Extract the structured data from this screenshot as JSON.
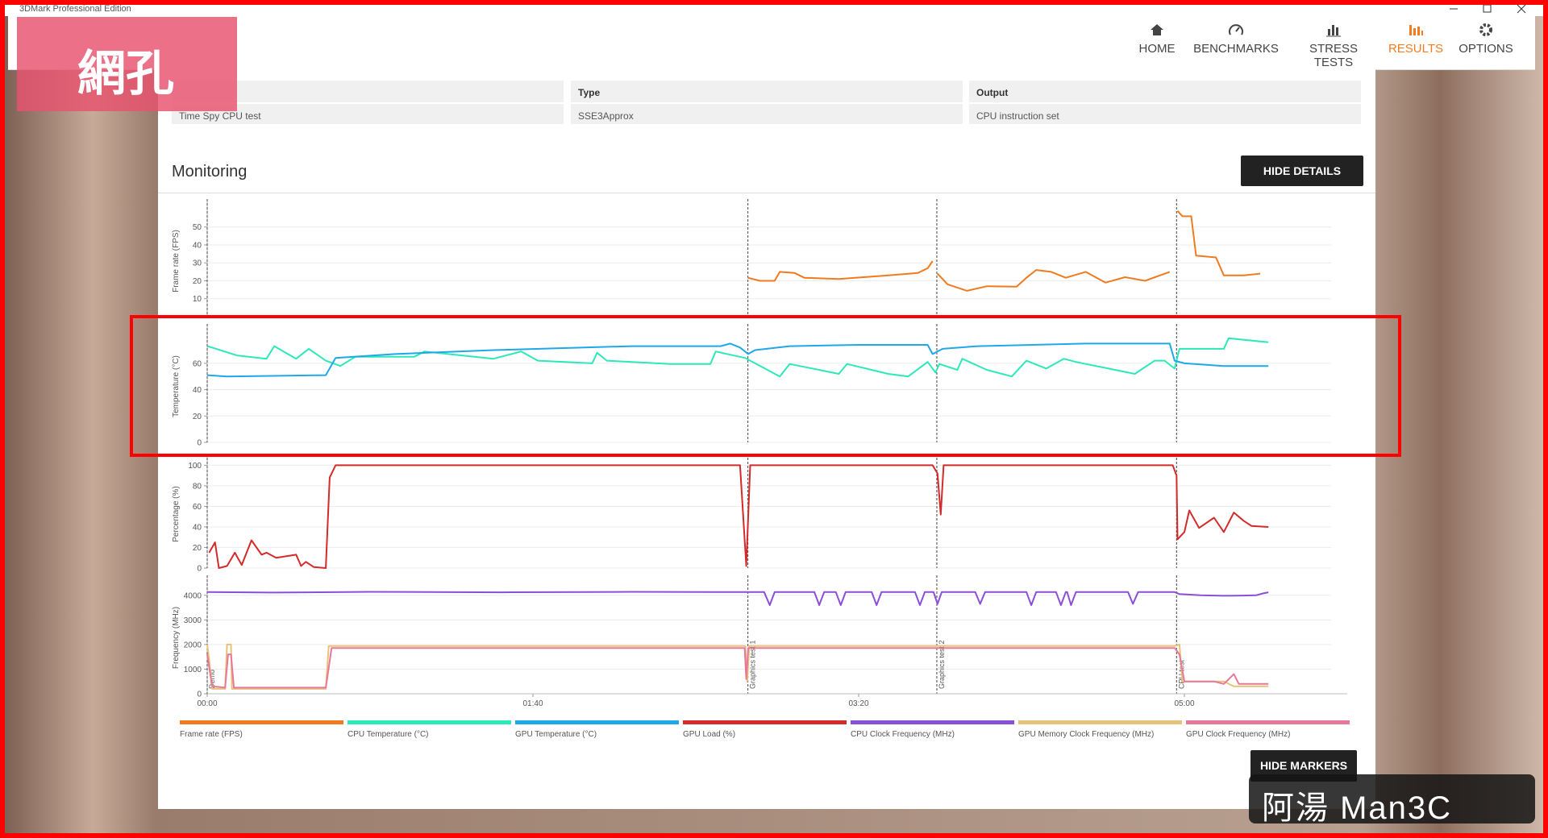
{
  "window_title": "3DMark Professional Edition",
  "overlay_label": "網孔",
  "nav": [
    "HOME",
    "BENCHMARKS",
    "STRESS TESTS",
    "RESULTS",
    "OPTIONS"
  ],
  "details": [
    {
      "value": "Time Spy CPU test"
    },
    {
      "header": "Type",
      "value": "SSE3Approx"
    },
    {
      "header": "Output",
      "value": "CPU instruction set"
    }
  ],
  "section_title": "Monitoring",
  "hide_details": "HIDE DETAILS",
  "hide_markers": "HIDE MARKERS",
  "watermark": "阿湯 Man3C",
  "timeline_markers": [
    {
      "x": 0,
      "label": "Demo"
    },
    {
      "x": 166,
      "label": "Graphics test 1"
    },
    {
      "x": 224,
      "label": "Graphics test 2"
    },
    {
      "x": 297.6,
      "label": "CPU test"
    }
  ],
  "chart_data": [
    {
      "type": "line",
      "ylabel": "Frame rate (FPS)",
      "xlim": [
        0,
        350
      ],
      "ylim": [
        0,
        62
      ],
      "yticks": [
        10,
        20,
        30,
        40,
        50
      ],
      "grid": true,
      "series": [
        {
          "name": "Frame rate (FPS)",
          "color": "#f07a20",
          "x": [
            166,
            169.7,
            174.2,
            175.8,
            180.3,
            183.3,
            193.9,
            209.1,
            218.2,
            221.2,
            222.7,
            223.5,
            224.2,
            227.3,
            233.3,
            239.4,
            248.5,
            251.5,
            254.5,
            259.1,
            263.6,
            269.7,
            275.8,
            281.8,
            287.9,
            295.5,
            296.5,
            297.9,
            299.4,
            302.1,
            303.6,
            309.7,
            312.1,
            318.2,
            323.3
          ],
          "values": [
            21.7,
            20,
            20,
            25,
            24.4,
            21.7,
            21,
            23,
            24.4,
            27,
            31,
            null,
            24,
            18,
            14.4,
            17,
            16.7,
            21.7,
            26,
            25,
            21.7,
            25,
            19,
            22,
            20,
            25,
            null,
            59,
            56,
            56,
            34,
            33,
            23,
            23,
            24
          ]
        }
      ]
    },
    {
      "type": "line",
      "ylabel": "Temperature (°C)",
      "xlim": [
        0,
        350
      ],
      "ylim": [
        0,
        85
      ],
      "yticks": [
        0,
        20,
        40,
        60
      ],
      "grid": true,
      "series": [
        {
          "name": "CPU Temperature (°C)",
          "color": "#2de8b8",
          "x": [
            0,
            1.5,
            9.1,
            18.2,
            20.6,
            27.3,
            31.2,
            36.4,
            40.9,
            45.5,
            63.6,
            66.7,
            87.9,
            96.4,
            101.5,
            118.2,
            119.7,
            122.7,
            142.4,
            154.5,
            156.1,
            165.2,
            166.7,
            175.8,
            178.8,
            193.9,
            196.4,
            209.1,
            215.2,
            221.2,
            223.6,
            224.8,
            230.3,
            231.8,
            239.4,
            247,
            251.5,
            257.6,
            263,
            266.7,
            284.8,
            290.9,
            293.9,
            297,
            298.5,
            312.1,
            313.6,
            325.8
          ],
          "values": [
            73,
            72,
            66,
            63.5,
            73,
            63.5,
            71,
            62,
            58,
            65,
            65,
            69,
            63.5,
            69,
            62,
            60,
            68,
            62,
            59.5,
            59.5,
            69,
            64,
            62,
            50,
            59.5,
            52,
            59.5,
            52,
            50,
            61,
            53,
            59.5,
            55,
            63.5,
            55,
            50,
            62,
            56,
            63.5,
            61,
            52,
            62,
            62,
            56,
            71,
            71,
            79,
            76
          ]
        },
        {
          "name": "GPU Temperature (°C)",
          "color": "#1fa8e8",
          "x": [
            0,
            6.1,
            36.4,
            39.4,
            57.6,
            87.9,
            130.3,
            157.6,
            160.6,
            163.6,
            166.1,
            168.2,
            178.8,
            200,
            221.2,
            222.7,
            225.8,
            236.4,
            269.7,
            295.5,
            297,
            300,
            312.1,
            325.8
          ],
          "values": [
            51,
            50,
            51,
            64,
            67,
            70,
            73,
            73,
            75,
            72,
            67,
            70,
            73,
            74,
            74,
            67,
            71,
            73,
            75,
            75,
            62,
            60,
            58,
            58
          ]
        }
      ]
    },
    {
      "type": "line",
      "ylabel": "Percentage (%)",
      "xlim": [
        0,
        350
      ],
      "ylim": [
        0,
        105
      ],
      "yticks": [
        0,
        20,
        40,
        60,
        80,
        100
      ],
      "grid": true,
      "series": [
        {
          "name": "GPU Load (%)",
          "color": "#d42a2a",
          "x": [
            0.6,
            2.4,
            3.6,
            6.1,
            8.5,
            10.6,
            13.6,
            16.7,
            18.2,
            21.2,
            27.3,
            28.8,
            30.3,
            32.7,
            36.4,
            37.6,
            39.4,
            163.6,
            165.5,
            166.7,
            222.7,
            224.2,
            225.2,
            226.1,
            296.4,
            297.6,
            297.9,
            300,
            301.5,
            304.5,
            309.1,
            312.1,
            315.2,
            318.2,
            320.6,
            325.8
          ],
          "values": [
            15,
            25,
            0,
            2,
            15,
            3,
            27,
            13,
            15,
            10,
            13,
            2,
            6,
            1,
            0,
            88,
            100,
            100,
            2,
            100,
            100,
            92,
            52,
            100,
            100,
            90,
            28,
            35,
            56,
            39,
            49,
            35,
            54,
            46,
            41,
            40
          ]
        }
      ]
    },
    {
      "type": "line",
      "ylabel": "Frequency (MHz)",
      "xlim": [
        0,
        350
      ],
      "ylim": [
        0,
        4550
      ],
      "yticks": [
        0,
        1000,
        2000,
        3000,
        4000
      ],
      "grid": true,
      "xticks": [
        {
          "value": 0,
          "label": "00:00"
        },
        {
          "value": 100,
          "label": "01:40"
        },
        {
          "value": 200,
          "label": "03:20"
        },
        {
          "value": 300,
          "label": "05:00"
        }
      ],
      "series": [
        {
          "name": "CPU Clock Frequency (MHz)",
          "color": "#8a4fd6",
          "x": [
            0,
            20,
            50,
            90,
            130,
            165,
            166.7,
            171,
            172.7,
            174.2,
            186.4,
            187.9,
            189.4,
            193,
            194.5,
            196,
            204,
            205.5,
            207,
            217.3,
            218.8,
            220.3,
            223,
            224.2,
            225.5,
            235.8,
            237.3,
            238.8,
            251.5,
            253,
            254.5,
            260.6,
            262.1,
            263.6,
            264,
            265.2,
            266.7,
            282.7,
            284.2,
            285.8,
            297,
            298.5,
            305,
            312,
            318,
            322,
            324.2,
            325.8
          ],
          "values": [
            4130,
            4110,
            4140,
            4120,
            4140,
            4130,
            4130,
            4130,
            3600,
            4130,
            4130,
            3600,
            4130,
            4130,
            3600,
            4130,
            4130,
            3600,
            4130,
            4130,
            3600,
            4130,
            4130,
            3650,
            4130,
            4130,
            3650,
            4130,
            4130,
            3600,
            4130,
            4130,
            3600,
            4130,
            4130,
            3600,
            4130,
            4130,
            3650,
            4130,
            4130,
            4050,
            4000,
            3980,
            3990,
            4000,
            4080,
            4120
          ]
        },
        {
          "name": "GPU Memory Clock Frequency (MHz)",
          "color": "#e8c27a",
          "x": [
            0,
            0.6,
            1.5,
            5.5,
            6.1,
            7.3,
            7.6,
            36.4,
            37.3,
            165.2,
            165.8,
            166.4,
            297,
            298.5,
            299.4,
            312.1,
            315.2,
            325.8
          ],
          "values": [
            2000,
            1400,
            200,
            200,
            2000,
            2000,
            200,
            200,
            1940,
            1940,
            500,
            1940,
            1940,
            2000,
            500,
            500,
            300,
            300
          ]
        },
        {
          "name": "GPU Clock Frequency (MHz)",
          "color": "#e8789a",
          "x": [
            0,
            1.5,
            5.5,
            6.4,
            7.3,
            8.2,
            36.4,
            38.2,
            165,
            165.5,
            166.1,
            297,
            298.5,
            300,
            309.1,
            312.1,
            315.2,
            316.7,
            325.8
          ],
          "values": [
            1600,
            300,
            250,
            1600,
            1600,
            250,
            250,
            1860,
            1860,
            600,
            1860,
            1860,
            1600,
            500,
            500,
            400,
            800,
            400,
            400
          ]
        }
      ]
    }
  ]
}
